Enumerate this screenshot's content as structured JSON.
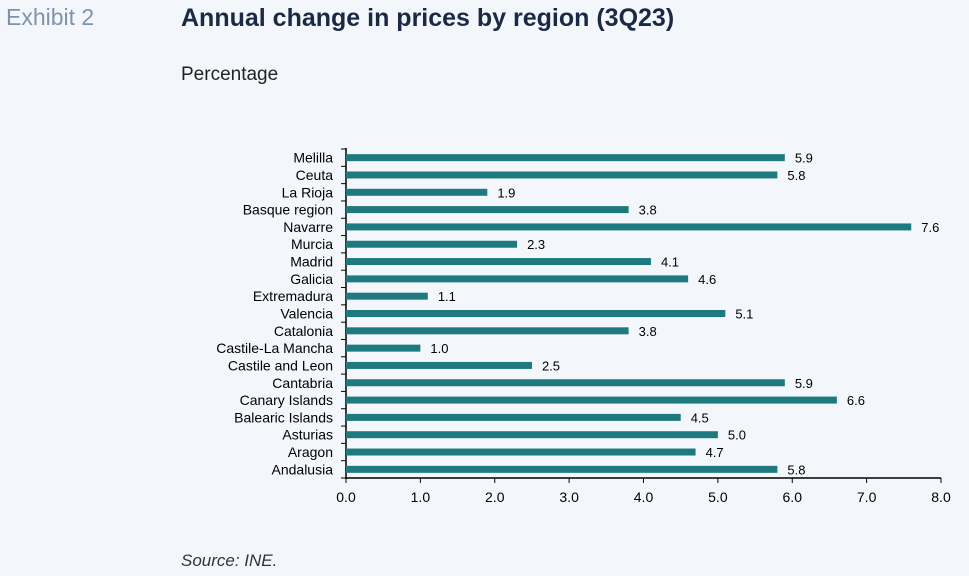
{
  "header": {
    "exhibit": "Exhibit 2",
    "title": "Annual change in prices by region (3Q23)",
    "subtitle": "Percentage"
  },
  "footer": {
    "source": "Source: INE."
  },
  "colors": {
    "bar": "#1f7a80",
    "axis": "#000000",
    "text": "#000000"
  },
  "chart_data": {
    "type": "bar",
    "orientation": "horizontal",
    "title": "Annual change in prices by region (3Q23)",
    "subtitle": "Percentage",
    "xlabel": "",
    "ylabel": "",
    "xlim": [
      0,
      8
    ],
    "xticks": [
      "0.0",
      "1.0",
      "2.0",
      "3.0",
      "4.0",
      "5.0",
      "6.0",
      "7.0",
      "8.0"
    ],
    "grid": false,
    "legend": "none",
    "categories": [
      "Melilla",
      "Ceuta",
      "La Rioja",
      "Basque region",
      "Navarre",
      "Murcia",
      "Madrid",
      "Galicia",
      "Extremadura",
      "Valencia",
      "Catalonia",
      "Castile-La Mancha",
      "Castile and Leon",
      "Cantabria",
      "Canary Islands",
      "Balearic Islands",
      "Asturias",
      "Aragon",
      "Andalusia"
    ],
    "values": [
      5.9,
      5.8,
      1.9,
      3.8,
      7.6,
      2.3,
      4.1,
      4.6,
      1.1,
      5.1,
      3.8,
      1.0,
      2.5,
      5.9,
      6.6,
      4.5,
      5.0,
      4.7,
      5.8
    ],
    "value_labels": [
      "5.9",
      "5.8",
      "1.9",
      "3.8",
      "7.6",
      "2.3",
      "4.1",
      "4.6",
      "1.1",
      "5.1",
      "3.8",
      "1.0",
      "2.5",
      "5.9",
      "6.6",
      "4.5",
      "5.0",
      "4.7",
      "5.8"
    ]
  }
}
